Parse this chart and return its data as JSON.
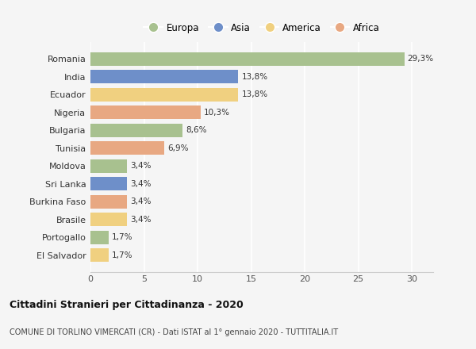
{
  "categories": [
    "Romania",
    "India",
    "Ecuador",
    "Nigeria",
    "Bulgaria",
    "Tunisia",
    "Moldova",
    "Sri Lanka",
    "Burkina Faso",
    "Brasile",
    "Portogallo",
    "El Salvador"
  ],
  "values": [
    29.3,
    13.8,
    13.8,
    10.3,
    8.6,
    6.9,
    3.4,
    3.4,
    3.4,
    3.4,
    1.7,
    1.7
  ],
  "labels": [
    "29,3%",
    "13,8%",
    "13,8%",
    "10,3%",
    "8,6%",
    "6,9%",
    "3,4%",
    "3,4%",
    "3,4%",
    "3,4%",
    "1,7%",
    "1,7%"
  ],
  "continents": [
    "Europa",
    "Asia",
    "America",
    "Africa",
    "Europa",
    "Africa",
    "Europa",
    "Asia",
    "Africa",
    "America",
    "Europa",
    "America"
  ],
  "colors": {
    "Europa": "#a8c18f",
    "Asia": "#6e8fc9",
    "America": "#f0d080",
    "Africa": "#e8a882"
  },
  "legend_order": [
    "Europa",
    "Asia",
    "America",
    "Africa"
  ],
  "title": "Cittadini Stranieri per Cittadinanza - 2020",
  "subtitle": "COMUNE DI TORLINO VIMERCATI (CR) - Dati ISTAT al 1° gennaio 2020 - TUTTITALIA.IT",
  "xlim": [
    0,
    32
  ],
  "xticks": [
    0,
    5,
    10,
    15,
    20,
    25,
    30
  ],
  "background_color": "#f5f5f5",
  "grid_color": "#ffffff",
  "bar_height": 0.75
}
